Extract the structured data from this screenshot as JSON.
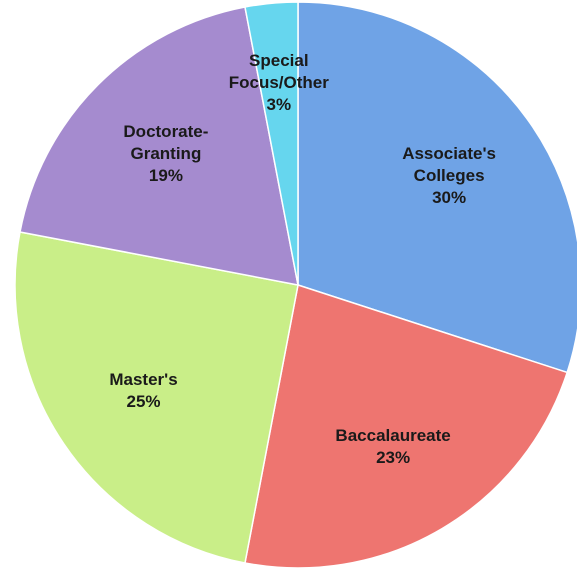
{
  "chart_data": {
    "type": "pie",
    "categories": [
      "Associate's Colleges",
      "Baccalaureate",
      "Master's",
      "Doctorate-Granting",
      "Special Focus/Other"
    ],
    "values": [
      30,
      23,
      25,
      19,
      3
    ],
    "value_labels": [
      "30%",
      "23%",
      "25%",
      "19%",
      "3%"
    ],
    "colors": [
      "#6fa3e6",
      "#ee7570",
      "#c9ee88",
      "#a58bcf",
      "#66d6ee"
    ]
  }
}
